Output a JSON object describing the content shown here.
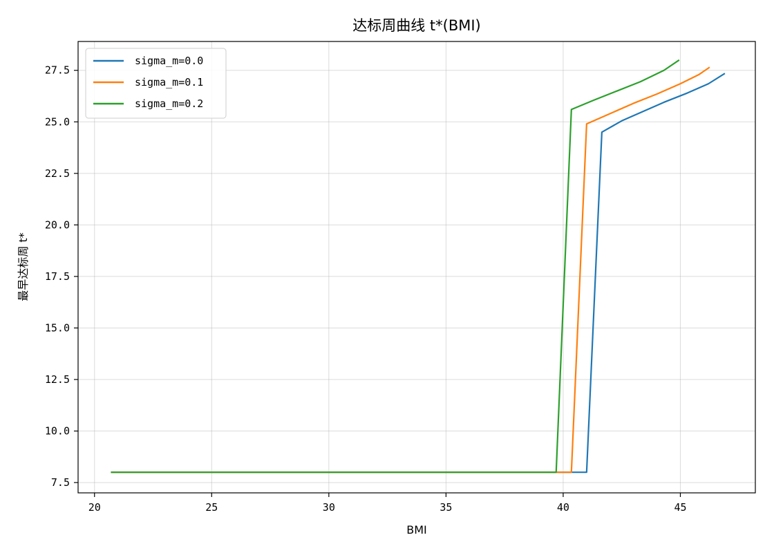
{
  "chart_data": {
    "type": "line",
    "title": "达标周曲线 t*(BMI)",
    "xlabel": "BMI",
    "ylabel": "最早达标周 t*",
    "xlim": [
      19.3,
      48.2
    ],
    "ylim": [
      7.0,
      28.9
    ],
    "xticks": [
      20,
      25,
      30,
      35,
      40,
      45
    ],
    "xtick_labels": [
      "20",
      "25",
      "30",
      "35",
      "40",
      "45"
    ],
    "yticks": [
      7.5,
      10.0,
      12.5,
      15.0,
      17.5,
      20.0,
      22.5,
      25.0,
      27.5
    ],
    "ytick_labels": [
      "7.5",
      "10.0",
      "12.5",
      "15.0",
      "17.5",
      "20.0",
      "22.5",
      "25.0",
      "27.5"
    ],
    "grid": true,
    "legend_position": "top-left",
    "series": [
      {
        "name": "sigma_m=0.0",
        "color": "#1f77b4",
        "x": [
          20.7,
          41.0,
          41.65,
          42.5,
          43.5,
          44.3,
          45.3,
          46.2,
          46.9
        ],
        "y": [
          8.0,
          8.0,
          24.5,
          25.05,
          25.55,
          25.95,
          26.4,
          26.85,
          27.35
        ]
      },
      {
        "name": "sigma_m=0.1",
        "color": "#ff7f0e",
        "x": [
          20.7,
          40.35,
          41.0,
          42.0,
          43.0,
          44.0,
          45.0,
          45.8,
          46.25
        ],
        "y": [
          8.0,
          8.0,
          24.9,
          25.4,
          25.9,
          26.35,
          26.85,
          27.3,
          27.65
        ]
      },
      {
        "name": "sigma_m=0.2",
        "color": "#2ca02c",
        "x": [
          20.7,
          39.7,
          40.35,
          41.3,
          42.3,
          43.3,
          44.3,
          44.95
        ],
        "y": [
          8.0,
          8.0,
          25.6,
          26.05,
          26.5,
          26.95,
          27.5,
          28.0
        ]
      }
    ]
  }
}
